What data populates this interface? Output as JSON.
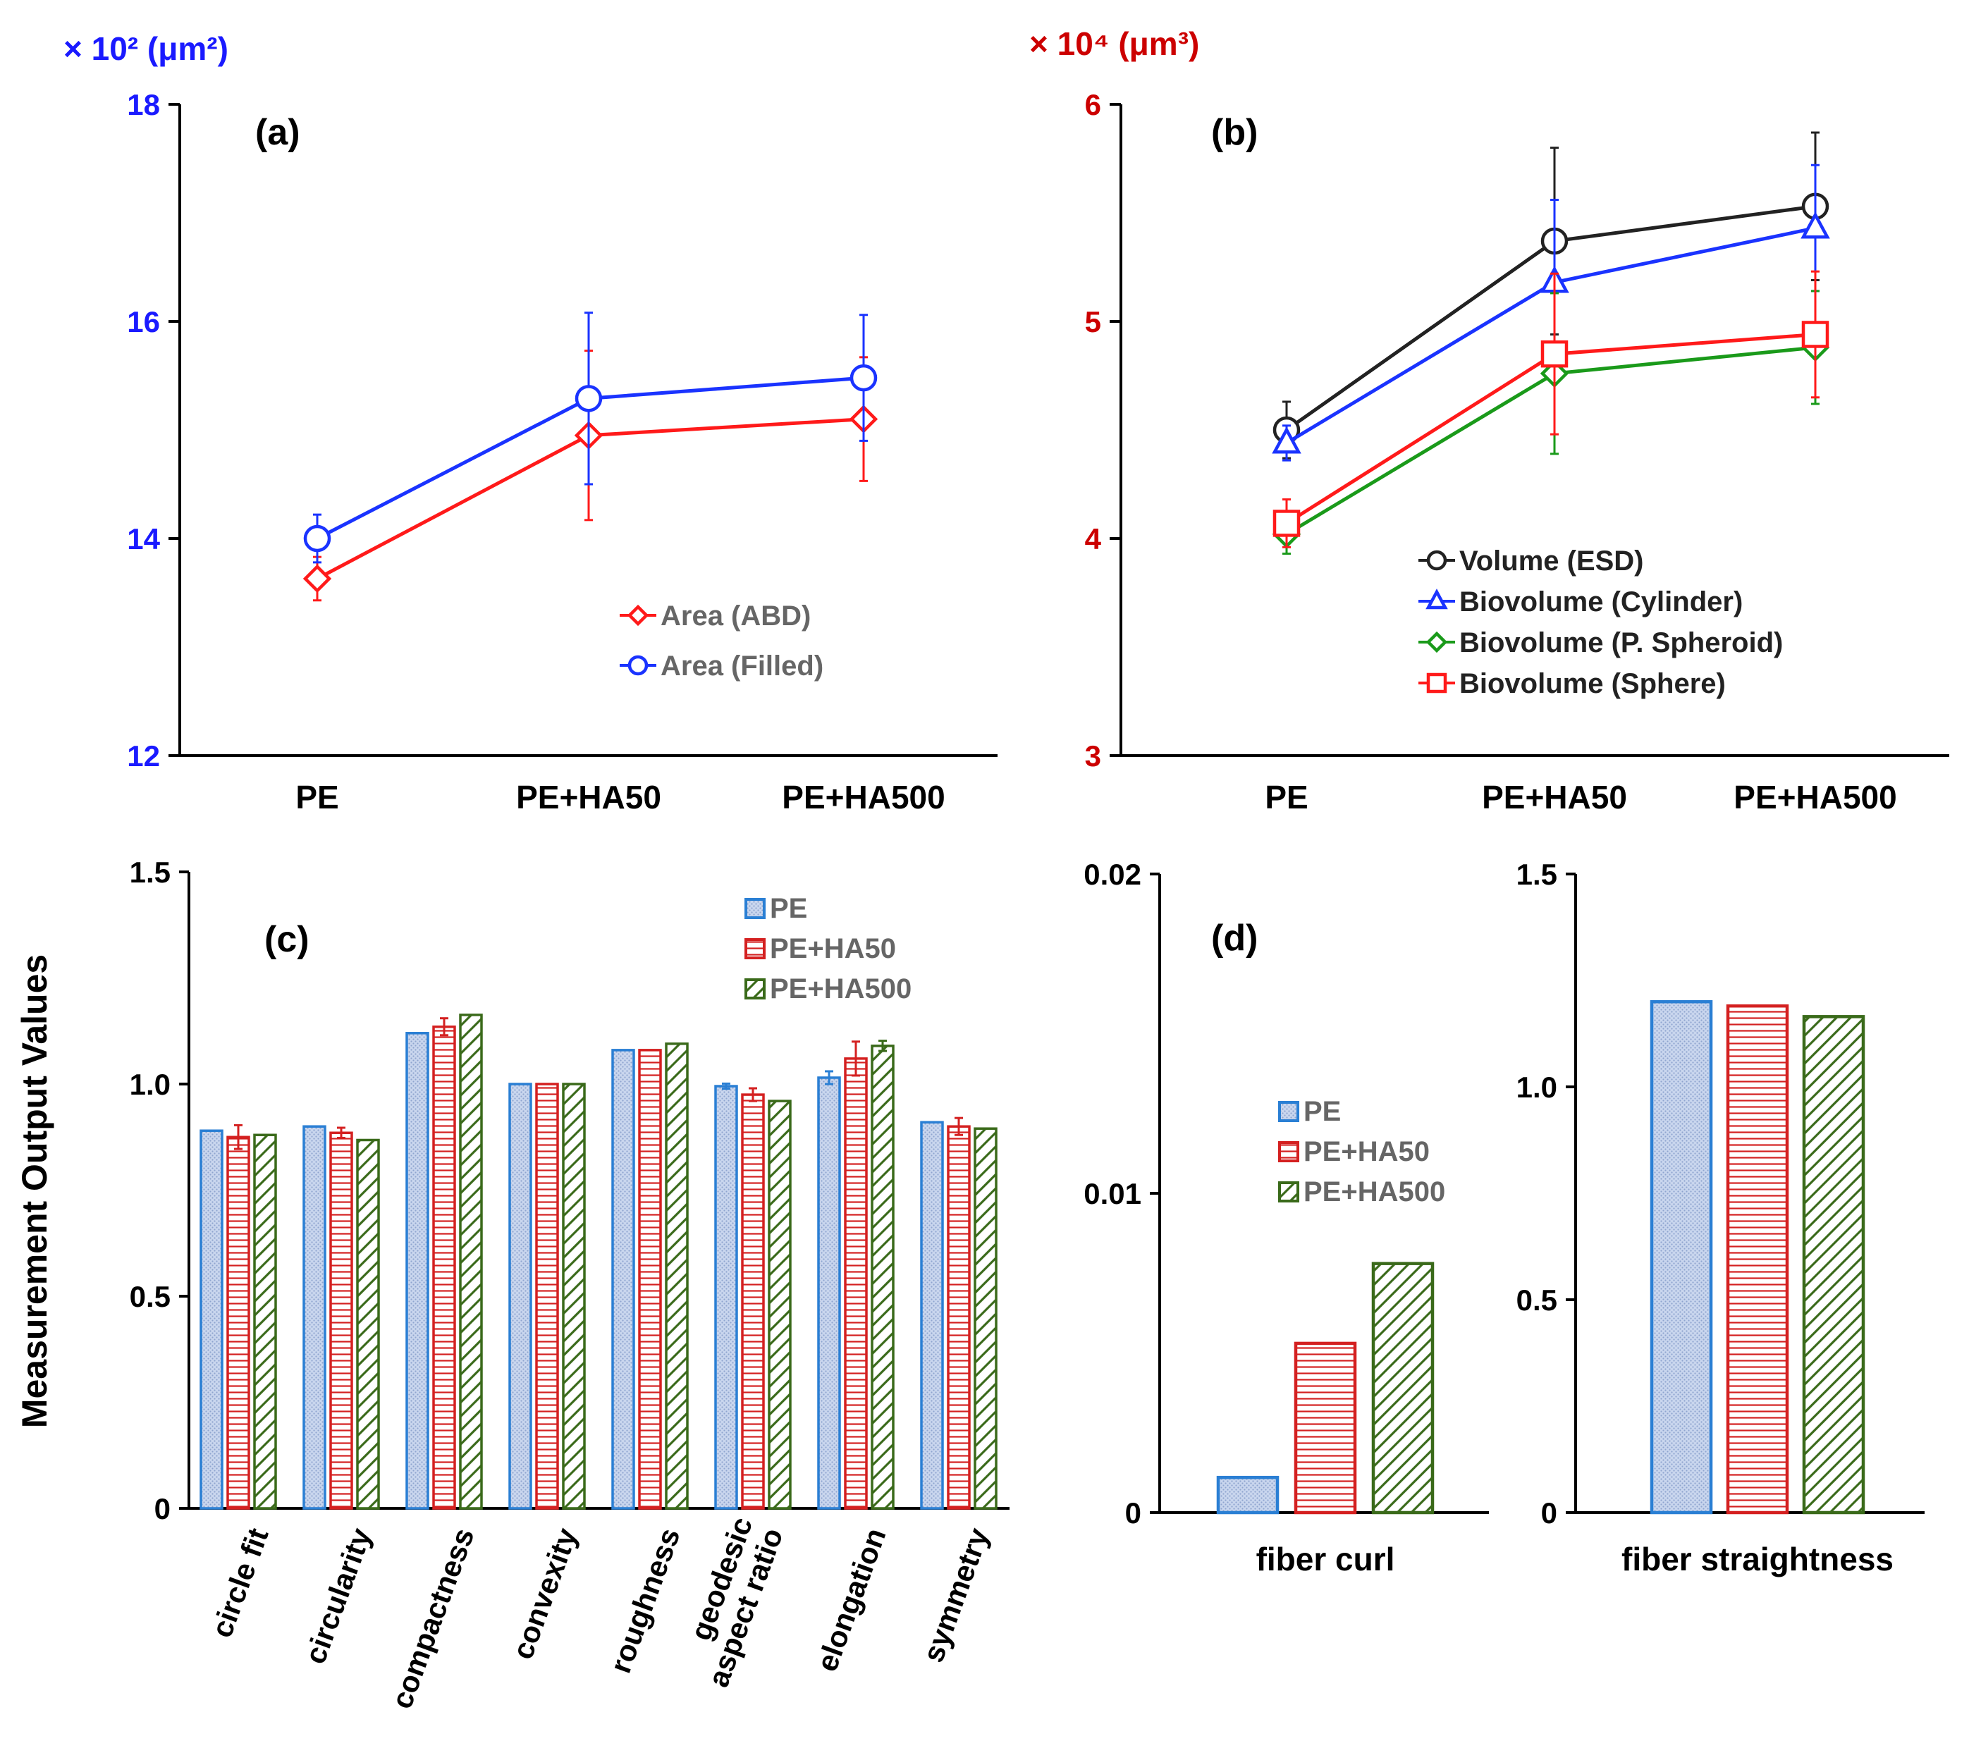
{
  "chart_data": [
    {
      "panel": "a",
      "type": "line",
      "label": "(a)",
      "unit_label": "× 10² (μm²)",
      "categories": [
        "PE",
        "PE+HA50",
        "PE+HA500"
      ],
      "ylim": [
        12,
        18
      ],
      "yticks": [
        12,
        14,
        16,
        18
      ],
      "series": [
        {
          "name": "Area (ABD)",
          "color": "#ff1a1a",
          "marker": "diamond",
          "values": [
            13.63,
            14.95,
            15.1
          ],
          "errors": [
            0.2,
            0.78,
            0.57
          ]
        },
        {
          "name": "Area (Filled)",
          "color": "#1a33ff",
          "marker": "circle",
          "values": [
            14.0,
            15.29,
            15.48
          ],
          "errors": [
            0.22,
            0.79,
            0.58
          ]
        }
      ],
      "legend": "center-right"
    },
    {
      "panel": "b",
      "type": "line",
      "label": "(b)",
      "unit_label": "× 10⁴ (μm³)",
      "categories": [
        "PE",
        "PE+HA50",
        "PE+HA500"
      ],
      "ylim": [
        3,
        6
      ],
      "yticks": [
        3,
        4,
        5,
        6
      ],
      "series": [
        {
          "name": "Volume (ESD)",
          "color": "#222222",
          "marker": "circle",
          "values": [
            4.5,
            5.37,
            5.53
          ],
          "errors": [
            0.13,
            0.43,
            0.34
          ]
        },
        {
          "name": "Biovolume (Cylinder)",
          "color": "#1a33ff",
          "marker": "triangle",
          "values": [
            4.44,
            5.18,
            5.43
          ],
          "errors": [
            0.08,
            0.38,
            0.29
          ]
        },
        {
          "name": "Biovolume (P. Spheroid)",
          "color": "#1a9a1a",
          "marker": "diamond",
          "values": [
            4.02,
            4.76,
            4.88
          ],
          "errors": [
            0.09,
            0.37,
            0.26
          ]
        },
        {
          "name": "Biovolume (Sphere)",
          "color": "#ff1a1a",
          "marker": "square",
          "values": [
            4.07,
            4.85,
            4.94
          ],
          "errors": [
            0.11,
            0.37,
            0.29
          ]
        }
      ],
      "legend": "lower-right"
    },
    {
      "panel": "c",
      "type": "bar",
      "label": "(c)",
      "ylabel": "Measurement Output Values",
      "ylim": [
        0,
        1.5
      ],
      "yticks": [
        "0",
        "0.5",
        "1.0",
        "1.5"
      ],
      "categories": [
        "circle fit",
        "circularity",
        "compactness",
        "convexity",
        "roughness",
        "geodesic aspect ratio",
        "elongation",
        "symmetry"
      ],
      "category_lines": [
        [
          "circle fit"
        ],
        [
          "circularity"
        ],
        [
          "compactness"
        ],
        [
          "convexity"
        ],
        [
          "roughness"
        ],
        [
          "geodesic",
          "aspect ratio"
        ],
        [
          "elongation"
        ],
        [
          "symmetry"
        ]
      ],
      "series": [
        {
          "name": "PE",
          "values": [
            0.89,
            0.9,
            1.12,
            1.0,
            1.08,
            0.995,
            1.015,
            0.91
          ],
          "errors": [
            0.0,
            0.0,
            0.0,
            0.0,
            0.0,
            0.006,
            0.015,
            0.0
          ]
        },
        {
          "name": "PE+HA50",
          "values": [
            0.875,
            0.885,
            1.135,
            1.0,
            1.08,
            0.975,
            1.06,
            0.9
          ],
          "errors": [
            0.028,
            0.012,
            0.02,
            0.0,
            0.0,
            0.015,
            0.04,
            0.02
          ]
        },
        {
          "name": "PE+HA500",
          "values": [
            0.88,
            0.868,
            1.163,
            1.0,
            1.095,
            0.96,
            1.09,
            0.895
          ],
          "errors": [
            0.0,
            0.0,
            0.0,
            0.0,
            0.0,
            0.0,
            0.012,
            0.0
          ]
        }
      ],
      "legend": "top-right"
    },
    {
      "panel": "d-left",
      "type": "bar",
      "label": "(d)",
      "ylim": [
        0,
        0.02
      ],
      "yticks": [
        "0",
        "0.01",
        "0.02"
      ],
      "categories": [
        "fiber curl"
      ],
      "series": [
        {
          "name": "PE",
          "values": [
            0.0011
          ]
        },
        {
          "name": "PE+HA50",
          "values": [
            0.0053
          ]
        },
        {
          "name": "PE+HA500",
          "values": [
            0.0078
          ]
        }
      ],
      "legend": "center"
    },
    {
      "panel": "d-right",
      "type": "bar",
      "ylim": [
        0,
        1.5
      ],
      "yticks": [
        "0",
        "0.5",
        "1.0",
        "1.5"
      ],
      "categories": [
        "fiber straightness"
      ],
      "series": [
        {
          "name": "PE",
          "values": [
            1.2
          ]
        },
        {
          "name": "PE+HA50",
          "values": [
            1.19
          ]
        },
        {
          "name": "PE+HA500",
          "values": [
            1.165
          ]
        }
      ]
    }
  ],
  "bar_styles": [
    {
      "name": "PE",
      "stroke": "#2a7fd4",
      "fill": "#c9d6ee",
      "pattern": "dots"
    },
    {
      "name": "PE+HA50",
      "stroke": "#d42020",
      "fill": "#ffffff",
      "pattern": "horizontal"
    },
    {
      "name": "PE+HA500",
      "stroke": "#3a6a1a",
      "fill": "#ffffff",
      "pattern": "diagonal"
    }
  ],
  "colors": {
    "unit_a": "#1a1aff",
    "unit_b": "#cc0000",
    "legend_text": "#666666",
    "axis": "#000000"
  }
}
